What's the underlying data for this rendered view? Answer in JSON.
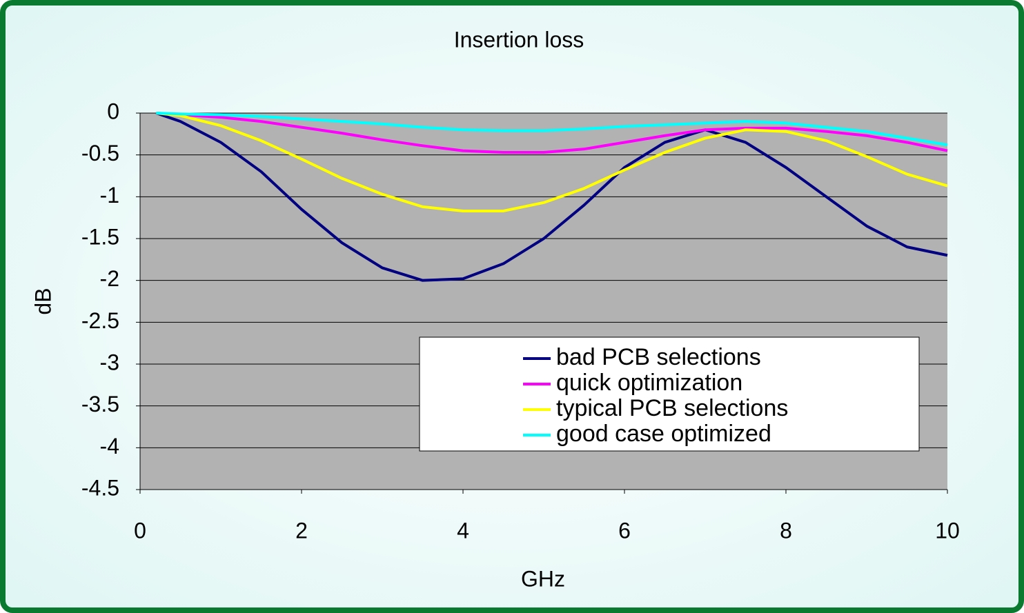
{
  "chart_data": {
    "type": "line",
    "title": "Insertion loss",
    "xlabel": "GHz",
    "ylabel": "dB",
    "x": [
      0.2,
      0.5,
      1,
      1.5,
      2,
      2.5,
      3,
      3.5,
      4,
      4.5,
      5,
      5.5,
      6,
      6.5,
      7,
      7.5,
      8,
      8.5,
      9,
      9.5,
      10
    ],
    "series": [
      {
        "name": "bad PCB selections",
        "color": "#000080",
        "values": [
          0,
          -0.1,
          -0.35,
          -0.7,
          -1.15,
          -1.55,
          -1.85,
          -2.0,
          -1.98,
          -1.8,
          -1.5,
          -1.1,
          -0.65,
          -0.35,
          -0.2,
          -0.35,
          -0.65,
          -1.0,
          -1.35,
          -1.6,
          -1.7
        ]
      },
      {
        "name": "quick optimization",
        "color": "#ff00ff",
        "values": [
          0,
          -0.02,
          -0.05,
          -0.1,
          -0.17,
          -0.24,
          -0.32,
          -0.39,
          -0.45,
          -0.47,
          -0.47,
          -0.43,
          -0.35,
          -0.27,
          -0.2,
          -0.18,
          -0.18,
          -0.22,
          -0.27,
          -0.35,
          -0.45
        ]
      },
      {
        "name": "typical PCB selections",
        "color": "#ffff00",
        "values": [
          0,
          -0.03,
          -0.15,
          -0.33,
          -0.55,
          -0.78,
          -0.97,
          -1.12,
          -1.17,
          -1.17,
          -1.07,
          -0.9,
          -0.68,
          -0.47,
          -0.3,
          -0.2,
          -0.22,
          -0.33,
          -0.52,
          -0.73,
          -0.87
        ]
      },
      {
        "name": "good case optimized",
        "color": "#00ffff",
        "values": [
          0,
          -0.01,
          -0.02,
          -0.04,
          -0.07,
          -0.1,
          -0.13,
          -0.17,
          -0.2,
          -0.21,
          -0.21,
          -0.19,
          -0.16,
          -0.14,
          -0.12,
          -0.1,
          -0.12,
          -0.17,
          -0.22,
          -0.3,
          -0.38
        ]
      }
    ],
    "xlim": [
      0,
      10
    ],
    "xticks": [
      0,
      2,
      4,
      6,
      8,
      10
    ],
    "ylim": [
      -4.5,
      0
    ],
    "yticks": [
      0,
      -0.5,
      -1,
      -1.5,
      -2,
      -2.5,
      -3,
      -3.5,
      -4,
      -4.5
    ],
    "grid": true,
    "legend": "lower right"
  }
}
